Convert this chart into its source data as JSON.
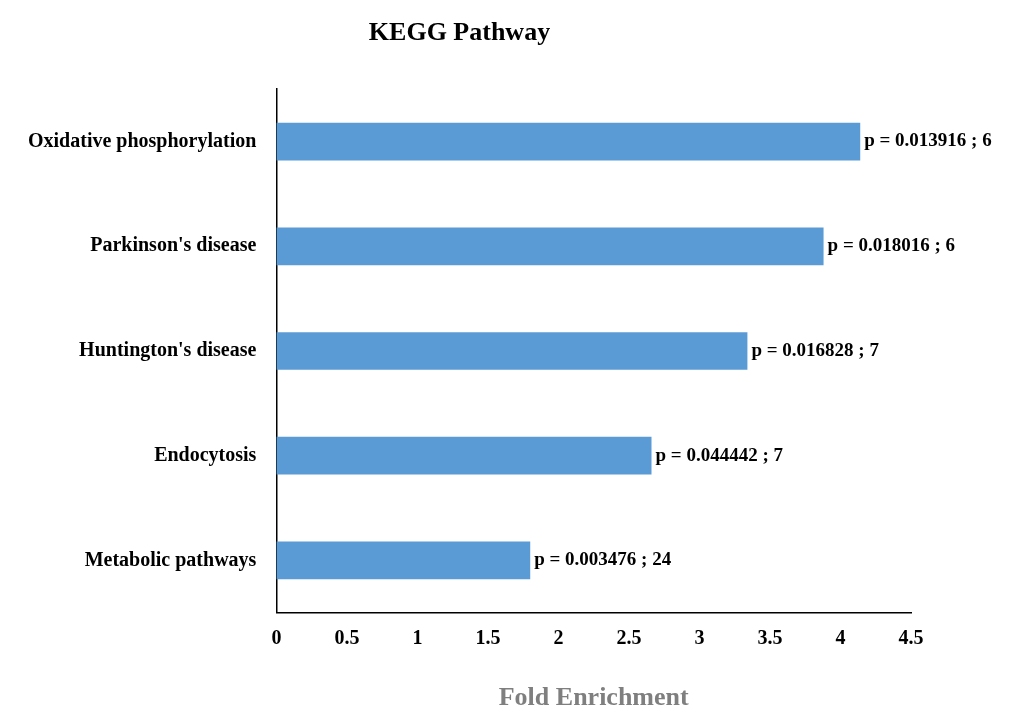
{
  "chart_data": {
    "type": "bar",
    "orientation": "horizontal",
    "title": "KEGG Pathway",
    "xlabel": "Fold Enrichment",
    "categories": [
      "Oxidative phosphorylation",
      "Parkinson's disease",
      "Huntington's disease",
      "Endocytosis",
      "Metabolic pathways"
    ],
    "values": [
      4.14,
      3.88,
      3.34,
      2.66,
      1.8
    ],
    "value_labels": [
      "p = 0.013916 ; 6",
      "p = 0.018016 ; 6",
      "p = 0.016828 ; 7",
      "p = 0.044442 ; 7",
      "p = 0.003476 ; 24"
    ],
    "color": "#5b9bd5",
    "xlim": [
      0,
      4.5
    ],
    "xticks": [
      0,
      0.5,
      1,
      1.5,
      2,
      2.5,
      3,
      3.5,
      4,
      4.5
    ],
    "grid": false,
    "legend": false
  }
}
